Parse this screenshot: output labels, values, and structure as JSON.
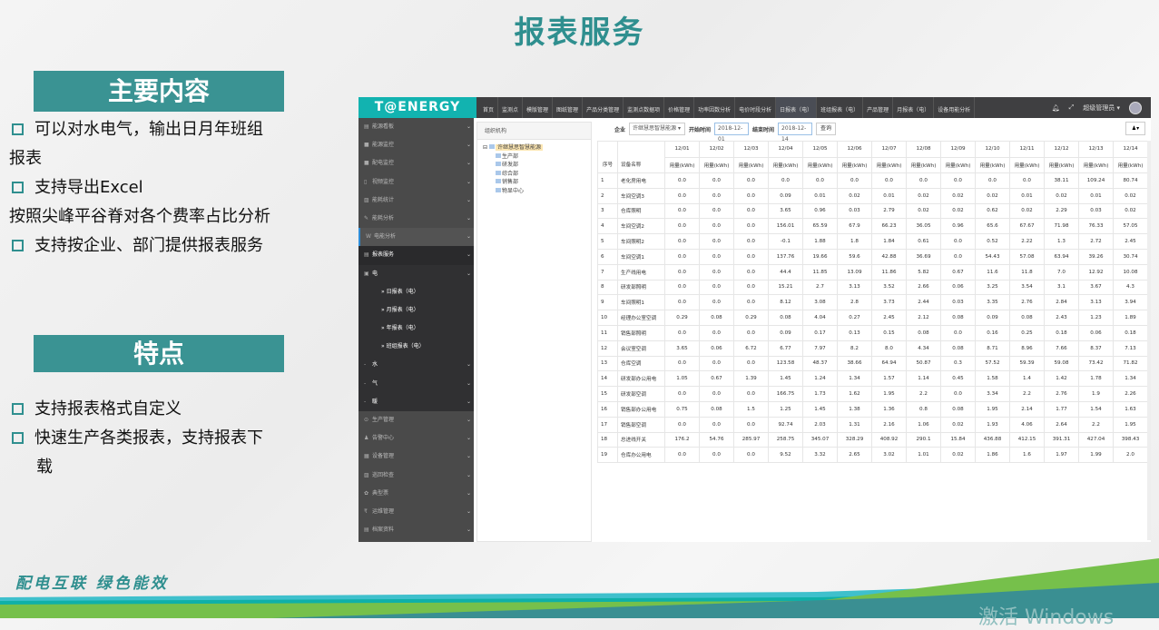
{
  "slide": {
    "title": "报表服务",
    "section1": "主要内容",
    "bullets1": [
      {
        "marker": true,
        "text": "可以对水电气，输出日月年班组"
      },
      {
        "marker": false,
        "text": "报表"
      },
      {
        "marker": true,
        "text": "支持导出Excel"
      },
      {
        "marker": false,
        "text": "按照尖峰平谷脊对各个费率占比分析"
      },
      {
        "marker": true,
        "text": "支持按企业、部门提供报表服务"
      }
    ],
    "section2": "特点",
    "bullets2": [
      {
        "marker": true,
        "text": "支持报表格式自定义"
      },
      {
        "marker": true,
        "text": "快速生产各类报表，支持报表下"
      },
      {
        "marker": false,
        "text": "载"
      }
    ],
    "slogan": "配电互联 绿色能效",
    "watermark": "激活 Windows",
    "colors": {
      "teal": "#2f8f8f",
      "green": "#76c04b",
      "cyan": "#3fc0cc"
    }
  },
  "app": {
    "logo": "T@ENERGY",
    "nav": [
      "首页",
      "监测点",
      "模版管理",
      "图纸管理",
      "产品分类管理",
      "监测点数据项",
      "价格管理",
      "功率因数分析",
      "电价时段分析",
      "日报表（电）",
      "班组报表（电）",
      "产品管理",
      "月报表（电）",
      "设备用能分析"
    ],
    "nav_active": 9,
    "user": "超级管理员 ▾",
    "sidebar": [
      {
        "label": "能源看板",
        "icon": "▤",
        "cls": ""
      },
      {
        "label": "能源监控",
        "icon": "■",
        "cls": ""
      },
      {
        "label": "配电监控",
        "icon": "■",
        "cls": ""
      },
      {
        "label": "视频监控",
        "icon": "▯",
        "cls": ""
      },
      {
        "label": "能耗统计",
        "icon": "▨",
        "cls": ""
      },
      {
        "label": "能耗分析",
        "icon": "✎",
        "cls": ""
      },
      {
        "label": "电能分析",
        "icon": "W",
        "cls": "cur"
      },
      {
        "label": "报表服务",
        "icon": "▤",
        "cls": "act"
      },
      {
        "label": "电",
        "icon": "▣",
        "cls": "sub"
      },
      {
        "label": "» 日报表（电）",
        "icon": "",
        "cls": "sub2"
      },
      {
        "label": "» 月报表（电）",
        "icon": "",
        "cls": "sub2"
      },
      {
        "label": "» 年报表（电）",
        "icon": "",
        "cls": "sub2"
      },
      {
        "label": "» 班组报表（电）",
        "icon": "",
        "cls": "sub2"
      },
      {
        "label": "水",
        "icon": "-",
        "cls": "sub"
      },
      {
        "label": "气",
        "icon": "-",
        "cls": "sub"
      },
      {
        "label": "暖",
        "icon": "-",
        "cls": "sub"
      },
      {
        "label": "生产管理",
        "icon": "⊙",
        "cls": ""
      },
      {
        "label": "告警中心",
        "icon": "♟",
        "cls": ""
      },
      {
        "label": "设备管理",
        "icon": "▦",
        "cls": ""
      },
      {
        "label": "巡回检查",
        "icon": "▨",
        "cls": ""
      },
      {
        "label": "典型票",
        "icon": "✿",
        "cls": ""
      },
      {
        "label": "运维管理",
        "icon": "₹",
        "cls": ""
      },
      {
        "label": "档案资料",
        "icon": "▤",
        "cls": ""
      }
    ],
    "org": {
      "title": "组织机构",
      "root": "许继慧思智慧能源",
      "children": [
        "生产部",
        "研发部",
        "综合部",
        "销售部",
        "物显中心"
      ]
    },
    "filters": {
      "company_label": "企业",
      "company": "许继慧思智慧能源",
      "start_label": "开始时间",
      "start": "2018-12-01",
      "end_label": "结束时间",
      "end": "2018-12-14",
      "query": "查询"
    },
    "table": {
      "col_no": "序号",
      "col_name": "设备名称",
      "unit": "用量(kWh)",
      "dates": [
        "12/01",
        "12/02",
        "12/03",
        "12/04",
        "12/05",
        "12/06",
        "12/07",
        "12/08",
        "12/09",
        "12/10",
        "12/11",
        "12/12",
        "12/13",
        "12/14"
      ],
      "rows": [
        [
          "1",
          "老化房用电",
          "0.0",
          "0.0",
          "0.0",
          "0.0",
          "0.0",
          "0.0",
          "0.0",
          "0.0",
          "0.0",
          "0.0",
          "0.0",
          "38.11",
          "109.24",
          "80.74"
        ],
        [
          "2",
          "车间空调3",
          "0.0",
          "0.0",
          "0.0",
          "0.09",
          "0.01",
          "0.02",
          "0.01",
          "0.02",
          "0.02",
          "0.02",
          "0.01",
          "0.02",
          "0.01",
          "0.02"
        ],
        [
          "3",
          "仓库照明",
          "0.0",
          "0.0",
          "0.0",
          "3.65",
          "0.96",
          "0.03",
          "2.79",
          "0.02",
          "0.02",
          "0.62",
          "0.02",
          "2.29",
          "0.03",
          "0.02"
        ],
        [
          "4",
          "车间空调2",
          "0.0",
          "0.0",
          "0.0",
          "156.01",
          "65.59",
          "67.9",
          "66.23",
          "36.05",
          "0.96",
          "65.6",
          "67.67",
          "71.98",
          "76.33",
          "57.05"
        ],
        [
          "5",
          "车间照明2",
          "0.0",
          "0.0",
          "0.0",
          "-0.1",
          "1.88",
          "1.8",
          "1.84",
          "0.61",
          "0.0",
          "0.52",
          "2.22",
          "1.3",
          "2.72",
          "2.45"
        ],
        [
          "6",
          "车间空调1",
          "0.0",
          "0.0",
          "0.0",
          "137.76",
          "19.66",
          "59.6",
          "42.88",
          "36.69",
          "0.0",
          "54.43",
          "57.08",
          "63.94",
          "39.26",
          "30.74"
        ],
        [
          "7",
          "生产线用电",
          "0.0",
          "0.0",
          "0.0",
          "44.4",
          "11.85",
          "13.09",
          "11.86",
          "5.82",
          "0.67",
          "11.6",
          "11.8",
          "7.0",
          "12.92",
          "10.08"
        ],
        [
          "8",
          "研发部照明",
          "0.0",
          "0.0",
          "0.0",
          "15.21",
          "2.7",
          "3.13",
          "3.52",
          "2.66",
          "0.06",
          "3.25",
          "3.54",
          "3.1",
          "3.67",
          "4.3"
        ],
        [
          "9",
          "车间照明1",
          "0.0",
          "0.0",
          "0.0",
          "8.12",
          "3.08",
          "2.8",
          "3.73",
          "2.44",
          "0.03",
          "3.35",
          "2.76",
          "2.84",
          "3.13",
          "3.94"
        ],
        [
          "10",
          "经理办公室空调",
          "0.29",
          "0.08",
          "0.29",
          "0.08",
          "4.04",
          "0.27",
          "2.45",
          "2.12",
          "0.08",
          "0.09",
          "0.08",
          "2.43",
          "1.23",
          "1.89"
        ],
        [
          "11",
          "销售部照明",
          "0.0",
          "0.0",
          "0.0",
          "0.09",
          "0.17",
          "0.13",
          "0.15",
          "0.08",
          "0.0",
          "0.16",
          "0.25",
          "0.18",
          "0.06",
          "0.18"
        ],
        [
          "12",
          "会议室空调",
          "3.65",
          "0.06",
          "6.72",
          "6.77",
          "7.97",
          "8.2",
          "8.0",
          "4.34",
          "0.08",
          "8.71",
          "8.96",
          "7.66",
          "8.37",
          "7.13"
        ],
        [
          "13",
          "仓库空调",
          "0.0",
          "0.0",
          "0.0",
          "123.58",
          "48.37",
          "38.66",
          "64.94",
          "50.87",
          "0.3",
          "57.52",
          "59.39",
          "59.08",
          "73.42",
          "71.82"
        ],
        [
          "14",
          "研发部办公用电",
          "1.05",
          "0.67",
          "1.39",
          "1.45",
          "1.24",
          "1.34",
          "1.57",
          "1.14",
          "0.45",
          "1.58",
          "1.4",
          "1.42",
          "1.78",
          "1.34"
        ],
        [
          "15",
          "研发部空调",
          "0.0",
          "0.0",
          "0.0",
          "166.75",
          "1.73",
          "1.62",
          "1.95",
          "2.2",
          "0.0",
          "3.34",
          "2.2",
          "2.76",
          "1.9",
          "2.26"
        ],
        [
          "16",
          "销售部办公用电",
          "0.75",
          "0.08",
          "1.5",
          "1.25",
          "1.45",
          "1.38",
          "1.36",
          "0.8",
          "0.08",
          "1.95",
          "2.14",
          "1.77",
          "1.54",
          "1.63"
        ],
        [
          "17",
          "销售部空调",
          "0.0",
          "0.0",
          "0.0",
          "92.74",
          "2.03",
          "1.31",
          "2.16",
          "1.06",
          "0.02",
          "1.93",
          "4.06",
          "2.64",
          "2.2",
          "1.95"
        ],
        [
          "18",
          "总进线开关",
          "176.2",
          "54.76",
          "285.97",
          "258.75",
          "345.07",
          "328.29",
          "408.92",
          "290.1",
          "15.84",
          "436.88",
          "412.15",
          "391.31",
          "427.04",
          "398.43"
        ],
        [
          "19",
          "仓库办公用电",
          "0.0",
          "0.0",
          "0.0",
          "9.52",
          "3.32",
          "2.65",
          "3.02",
          "1.01",
          "0.02",
          "1.86",
          "1.6",
          "1.97",
          "1.99",
          "2.0"
        ]
      ]
    }
  }
}
